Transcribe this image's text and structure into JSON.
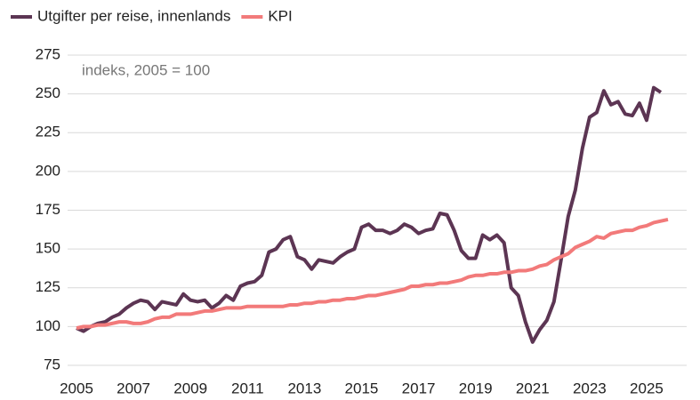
{
  "chart_data": {
    "type": "line",
    "annotation": "indeks, 2005 = 100",
    "x": [
      2005,
      2005.25,
      2005.5,
      2005.75,
      2006,
      2006.25,
      2006.5,
      2006.75,
      2007,
      2007.25,
      2007.5,
      2007.75,
      2008,
      2008.25,
      2008.5,
      2008.75,
      2009,
      2009.25,
      2009.5,
      2009.75,
      2010,
      2010.25,
      2010.5,
      2010.75,
      2011,
      2011.25,
      2011.5,
      2011.75,
      2012,
      2012.25,
      2012.5,
      2012.75,
      2013,
      2013.25,
      2013.5,
      2013.75,
      2014,
      2014.25,
      2014.5,
      2014.75,
      2015,
      2015.25,
      2015.5,
      2015.75,
      2016,
      2016.25,
      2016.5,
      2016.75,
      2017,
      2017.25,
      2017.5,
      2017.75,
      2018,
      2018.25,
      2018.5,
      2018.75,
      2019,
      2019.25,
      2019.5,
      2019.75,
      2020,
      2020.25,
      2020.5,
      2020.75,
      2021,
      2021.25,
      2021.5,
      2021.75,
      2022,
      2022.25,
      2022.5,
      2022.75,
      2023,
      2023.25,
      2023.5,
      2023.75,
      2024,
      2024.25,
      2024.5,
      2024.75,
      2025,
      2025.25,
      2025.5,
      2025.75
    ],
    "series": [
      {
        "name": "Utgifter per reise, innenlands",
        "color": "#5c3553",
        "values": [
          99,
          97,
          100,
          102,
          103,
          106,
          108,
          112,
          115,
          117,
          116,
          111,
          116,
          115,
          114,
          121,
          117,
          116,
          117,
          112,
          115,
          120,
          117,
          126,
          128,
          129,
          133,
          148,
          150,
          156,
          158,
          145,
          143,
          137,
          143,
          142,
          141,
          145,
          148,
          150,
          164,
          166,
          162,
          162,
          160,
          162,
          166,
          164,
          160,
          162,
          163,
          173,
          172,
          162,
          149,
          144,
          144,
          159,
          156,
          159,
          154,
          125,
          120,
          103,
          90,
          98,
          104,
          116,
          143,
          171,
          188,
          215,
          235,
          238,
          252,
          243,
          245,
          237,
          236,
          244,
          233,
          254,
          251,
          null
        ]
      },
      {
        "name": "KPI",
        "color": "#f27a7a",
        "values": [
          99,
          100,
          100,
          101,
          101,
          102,
          103,
          103,
          102,
          102,
          103,
          105,
          106,
          106,
          108,
          108,
          108,
          109,
          110,
          110,
          111,
          112,
          112,
          112,
          113,
          113,
          113,
          113,
          113,
          113,
          114,
          114,
          115,
          115,
          116,
          116,
          117,
          117,
          118,
          118,
          119,
          120,
          120,
          121,
          122,
          123,
          124,
          126,
          126,
          127,
          127,
          128,
          128,
          129,
          130,
          132,
          133,
          133,
          134,
          134,
          135,
          135,
          136,
          136,
          137,
          139,
          140,
          143,
          145,
          147,
          151,
          153,
          155,
          158,
          157,
          160,
          161,
          162,
          162,
          164,
          165,
          167,
          168,
          169
        ]
      }
    ],
    "xlim": [
      2005,
      2026
    ],
    "xticks": [
      2005,
      2007,
      2009,
      2011,
      2013,
      2015,
      2017,
      2019,
      2021,
      2023,
      2025
    ],
    "ylim": [
      75,
      275
    ],
    "yticks": [
      75,
      100,
      125,
      150,
      175,
      200,
      225,
      250,
      275
    ],
    "grid": true
  }
}
